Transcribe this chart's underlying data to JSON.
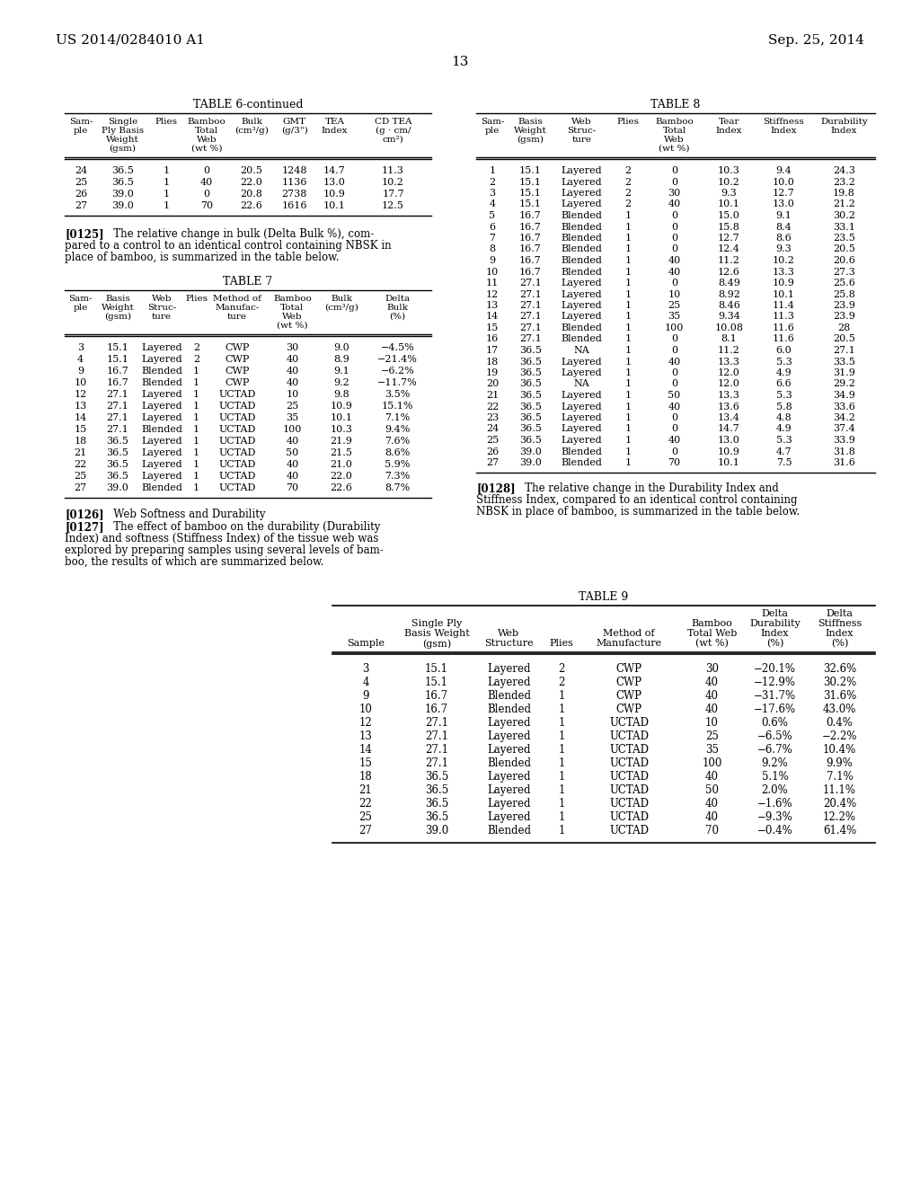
{
  "page_number": "13",
  "header_left": "US 2014/0284010 A1",
  "header_right": "Sep. 25, 2014",
  "bg_color": "#ffffff",
  "table6_continued": {
    "title": "TABLE 6-continued",
    "col_headers": [
      "Sam-\nple",
      "Single\nPly Basis\nWeight\n(gsm)",
      "Plies",
      "Bamboo\nTotal\nWeb\n(wt %)",
      "Bulk\n(cm³/g)",
      "GMT\n(g/3\")",
      "TEA\nIndex",
      "CD TEA\n(g · cm/\ncm²)"
    ],
    "rows": [
      [
        "24",
        "36.5",
        "1",
        "0",
        "20.5",
        "1248",
        "14.7",
        "11.3"
      ],
      [
        "25",
        "36.5",
        "1",
        "40",
        "22.0",
        "1136",
        "13.0",
        "10.2"
      ],
      [
        "26",
        "39.0",
        "1",
        "0",
        "20.8",
        "2738",
        "10.9",
        "17.7"
      ],
      [
        "27",
        "39.0",
        "1",
        "70",
        "22.6",
        "1616",
        "10.1",
        "12.5"
      ]
    ]
  },
  "table7": {
    "title": "TABLE 7",
    "col_headers": [
      "Sam-\nple",
      "Basis\nWeight\n(gsm)",
      "Web\nStruc-\nture",
      "Plies",
      "Method of\nManufac-\nture",
      "Bamboo\nTotal\nWeb\n(wt %)",
      "Bulk\n(cm³/g)",
      "Delta\nBulk\n(%)"
    ],
    "rows": [
      [
        "3",
        "15.1",
        "Layered",
        "2",
        "CWP",
        "30",
        "9.0",
        "−4.5%"
      ],
      [
        "4",
        "15.1",
        "Layered",
        "2",
        "CWP",
        "40",
        "8.9",
        "−21.4%"
      ],
      [
        "9",
        "16.7",
        "Blended",
        "1",
        "CWP",
        "40",
        "9.1",
        "−6.2%"
      ],
      [
        "10",
        "16.7",
        "Blended",
        "1",
        "CWP",
        "40",
        "9.2",
        "−11.7%"
      ],
      [
        "12",
        "27.1",
        "Layered",
        "1",
        "UCTAD",
        "10",
        "9.8",
        "3.5%"
      ],
      [
        "13",
        "27.1",
        "Layered",
        "1",
        "UCTAD",
        "25",
        "10.9",
        "15.1%"
      ],
      [
        "14",
        "27.1",
        "Layered",
        "1",
        "UCTAD",
        "35",
        "10.1",
        "7.1%"
      ],
      [
        "15",
        "27.1",
        "Blended",
        "1",
        "UCTAD",
        "100",
        "10.3",
        "9.4%"
      ],
      [
        "18",
        "36.5",
        "Layered",
        "1",
        "UCTAD",
        "40",
        "21.9",
        "7.6%"
      ],
      [
        "21",
        "36.5",
        "Layered",
        "1",
        "UCTAD",
        "50",
        "21.5",
        "8.6%"
      ],
      [
        "22",
        "36.5",
        "Layered",
        "1",
        "UCTAD",
        "40",
        "21.0",
        "5.9%"
      ],
      [
        "25",
        "36.5",
        "Layered",
        "1",
        "UCTAD",
        "40",
        "22.0",
        "7.3%"
      ],
      [
        "27",
        "39.0",
        "Blended",
        "1",
        "UCTAD",
        "70",
        "22.6",
        "8.7%"
      ]
    ]
  },
  "table8": {
    "title": "TABLE 8",
    "col_headers": [
      "Sam-\nple",
      "Basis\nWeight\n(gsm)",
      "Web\nStruc-\nture",
      "Plies",
      "Bamboo\nTotal\nWeb\n(wt %)",
      "Tear\nIndex",
      "Stiffness\nIndex",
      "Durability\nIndex"
    ],
    "rows": [
      [
        "1",
        "15.1",
        "Layered",
        "2",
        "0",
        "10.3",
        "9.4",
        "24.3"
      ],
      [
        "2",
        "15.1",
        "Layered",
        "2",
        "0",
        "10.2",
        "10.0",
        "23.2"
      ],
      [
        "3",
        "15.1",
        "Layered",
        "2",
        "30",
        "9.3",
        "12.7",
        "19.8"
      ],
      [
        "4",
        "15.1",
        "Layered",
        "2",
        "40",
        "10.1",
        "13.0",
        "21.2"
      ],
      [
        "5",
        "16.7",
        "Blended",
        "1",
        "0",
        "15.0",
        "9.1",
        "30.2"
      ],
      [
        "6",
        "16.7",
        "Blended",
        "1",
        "0",
        "15.8",
        "8.4",
        "33.1"
      ],
      [
        "7",
        "16.7",
        "Blended",
        "1",
        "0",
        "12.7",
        "8.6",
        "23.5"
      ],
      [
        "8",
        "16.7",
        "Blended",
        "1",
        "0",
        "12.4",
        "9.3",
        "20.5"
      ],
      [
        "9",
        "16.7",
        "Blended",
        "1",
        "40",
        "11.2",
        "10.2",
        "20.6"
      ],
      [
        "10",
        "16.7",
        "Blended",
        "1",
        "40",
        "12.6",
        "13.3",
        "27.3"
      ],
      [
        "11",
        "27.1",
        "Layered",
        "1",
        "0",
        "8.49",
        "10.9",
        "25.6"
      ],
      [
        "12",
        "27.1",
        "Layered",
        "1",
        "10",
        "8.92",
        "10.1",
        "25.8"
      ],
      [
        "13",
        "27.1",
        "Layered",
        "1",
        "25",
        "8.46",
        "11.4",
        "23.9"
      ],
      [
        "14",
        "27.1",
        "Layered",
        "1",
        "35",
        "9.34",
        "11.3",
        "23.9"
      ],
      [
        "15",
        "27.1",
        "Blended",
        "1",
        "100",
        "10.08",
        "11.6",
        "28"
      ],
      [
        "16",
        "27.1",
        "Blended",
        "1",
        "0",
        "8.1",
        "11.6",
        "20.5"
      ],
      [
        "17",
        "36.5",
        "NA",
        "1",
        "0",
        "11.2",
        "6.0",
        "27.1"
      ],
      [
        "18",
        "36.5",
        "Layered",
        "1",
        "40",
        "13.3",
        "5.3",
        "33.5"
      ],
      [
        "19",
        "36.5",
        "Layered",
        "1",
        "0",
        "12.0",
        "4.9",
        "31.9"
      ],
      [
        "20",
        "36.5",
        "NA",
        "1",
        "0",
        "12.0",
        "6.6",
        "29.2"
      ],
      [
        "21",
        "36.5",
        "Layered",
        "1",
        "50",
        "13.3",
        "5.3",
        "34.9"
      ],
      [
        "22",
        "36.5",
        "Layered",
        "1",
        "40",
        "13.6",
        "5.8",
        "33.6"
      ],
      [
        "23",
        "36.5",
        "Layered",
        "1",
        "0",
        "13.4",
        "4.8",
        "34.2"
      ],
      [
        "24",
        "36.5",
        "Layered",
        "1",
        "0",
        "14.7",
        "4.9",
        "37.4"
      ],
      [
        "25",
        "36.5",
        "Layered",
        "1",
        "40",
        "13.0",
        "5.3",
        "33.9"
      ],
      [
        "26",
        "39.0",
        "Blended",
        "1",
        "0",
        "10.9",
        "4.7",
        "31.8"
      ],
      [
        "27",
        "39.0",
        "Blended",
        "1",
        "70",
        "10.1",
        "7.5",
        "31.6"
      ]
    ]
  },
  "table9": {
    "title": "TABLE 9",
    "rows": [
      [
        "3",
        "15.1",
        "Layered",
        "2",
        "CWP",
        "30",
        "−20.1%",
        "32.6%"
      ],
      [
        "4",
        "15.1",
        "Layered",
        "2",
        "CWP",
        "40",
        "−12.9%",
        "30.2%"
      ],
      [
        "9",
        "16.7",
        "Blended",
        "1",
        "CWP",
        "40",
        "−31.7%",
        "31.6%"
      ],
      [
        "10",
        "16.7",
        "Blended",
        "1",
        "CWP",
        "40",
        "−17.6%",
        "43.0%"
      ],
      [
        "12",
        "27.1",
        "Layered",
        "1",
        "UCTAD",
        "10",
        "0.6%",
        "0.4%"
      ],
      [
        "13",
        "27.1",
        "Layered",
        "1",
        "UCTAD",
        "25",
        "−6.5%",
        "−2.2%"
      ],
      [
        "14",
        "27.1",
        "Layered",
        "1",
        "UCTAD",
        "35",
        "−6.7%",
        "10.4%"
      ],
      [
        "15",
        "27.1",
        "Blended",
        "1",
        "UCTAD",
        "100",
        "9.2%",
        "9.9%"
      ],
      [
        "18",
        "36.5",
        "Layered",
        "1",
        "UCTAD",
        "40",
        "5.1%",
        "7.1%"
      ],
      [
        "21",
        "36.5",
        "Layered",
        "1",
        "UCTAD",
        "50",
        "2.0%",
        "11.1%"
      ],
      [
        "22",
        "36.5",
        "Layered",
        "1",
        "UCTAD",
        "40",
        "−1.6%",
        "20.4%"
      ],
      [
        "25",
        "36.5",
        "Layered",
        "1",
        "UCTAD",
        "40",
        "−9.3%",
        "12.2%"
      ],
      [
        "27",
        "39.0",
        "Blended",
        "1",
        "UCTAD",
        "70",
        "−0.4%",
        "61.4%"
      ]
    ]
  },
  "para_0125_lines": [
    "[0125]    The relative change in bulk (Delta Bulk %), com-",
    "pared to a control to an identical control containing NBSK in",
    "place of bamboo, is summarized in the table below."
  ],
  "para_0126_line": "[0126]    Web Softness and Durability",
  "para_0127_lines": [
    "[0127]    The effect of bamboo on the durability (Durability",
    "Index) and softness (Stiffness Index) of the tissue web was",
    "explored by preparing samples using several levels of bam-",
    "boo, the results of which are summarized below."
  ],
  "para_0128_lines": [
    "[0128]    The relative change in the Durability Index and",
    "Stiffness Index, compared to an identical control containing",
    "NBSK in place of bamboo, is summarized in the table below."
  ]
}
